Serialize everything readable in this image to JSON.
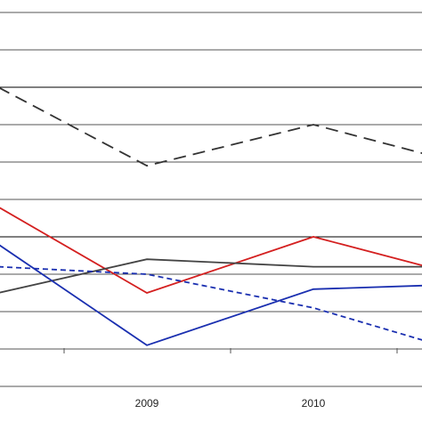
{
  "chart_data": {
    "type": "line",
    "title": "",
    "xlabel": "",
    "ylabel": "",
    "x_categories": [
      "",
      "2009",
      "2010",
      ""
    ],
    "x_tick_labels": [
      "2009",
      "2010"
    ],
    "grid": "horizontal",
    "ylim": [
      0,
      100
    ],
    "series": [
      {
        "color": "#333333",
        "dash": "long-dash",
        "values": [
          80,
          59,
          70,
          62
        ]
      },
      {
        "color": "#d42020",
        "dash": "solid",
        "values": [
          48,
          25,
          40,
          32
        ]
      },
      {
        "color": "#444444",
        "dash": "solid",
        "values": [
          25,
          34,
          32,
          32
        ]
      },
      {
        "color": "#1a2fb0",
        "dash": "short-dash",
        "values": [
          32,
          30,
          21,
          12
        ]
      },
      {
        "color": "#1a2fb0",
        "dash": "solid",
        "values": [
          38,
          11,
          26,
          27
        ]
      }
    ]
  }
}
